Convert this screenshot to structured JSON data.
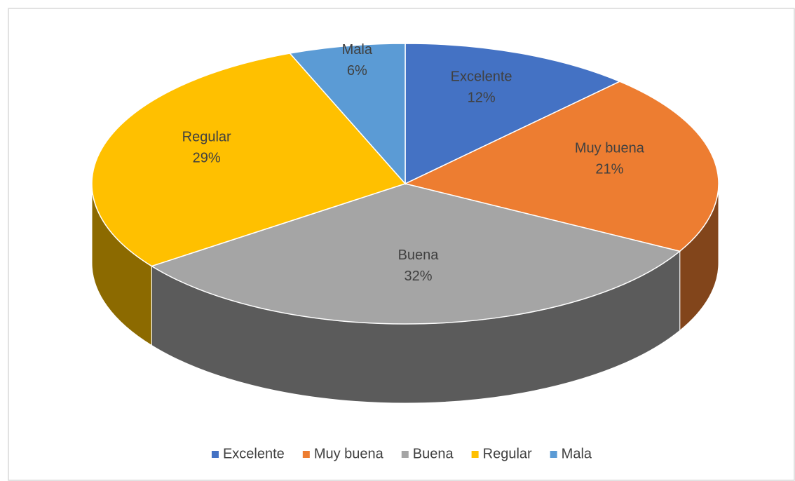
{
  "chart_data": {
    "type": "pie3d",
    "categories": [
      "Excelente",
      "Muy buena",
      "Buena",
      "Regular",
      "Mala"
    ],
    "values": [
      12,
      21,
      32,
      29,
      6
    ],
    "value_labels": [
      "12%",
      "21%",
      "32%",
      "29%",
      "6%"
    ],
    "colors": [
      "#4472c4",
      "#ed7d31",
      "#a5a5a5",
      "#ffc000",
      "#5b9bd5"
    ],
    "legend": "bottom"
  }
}
